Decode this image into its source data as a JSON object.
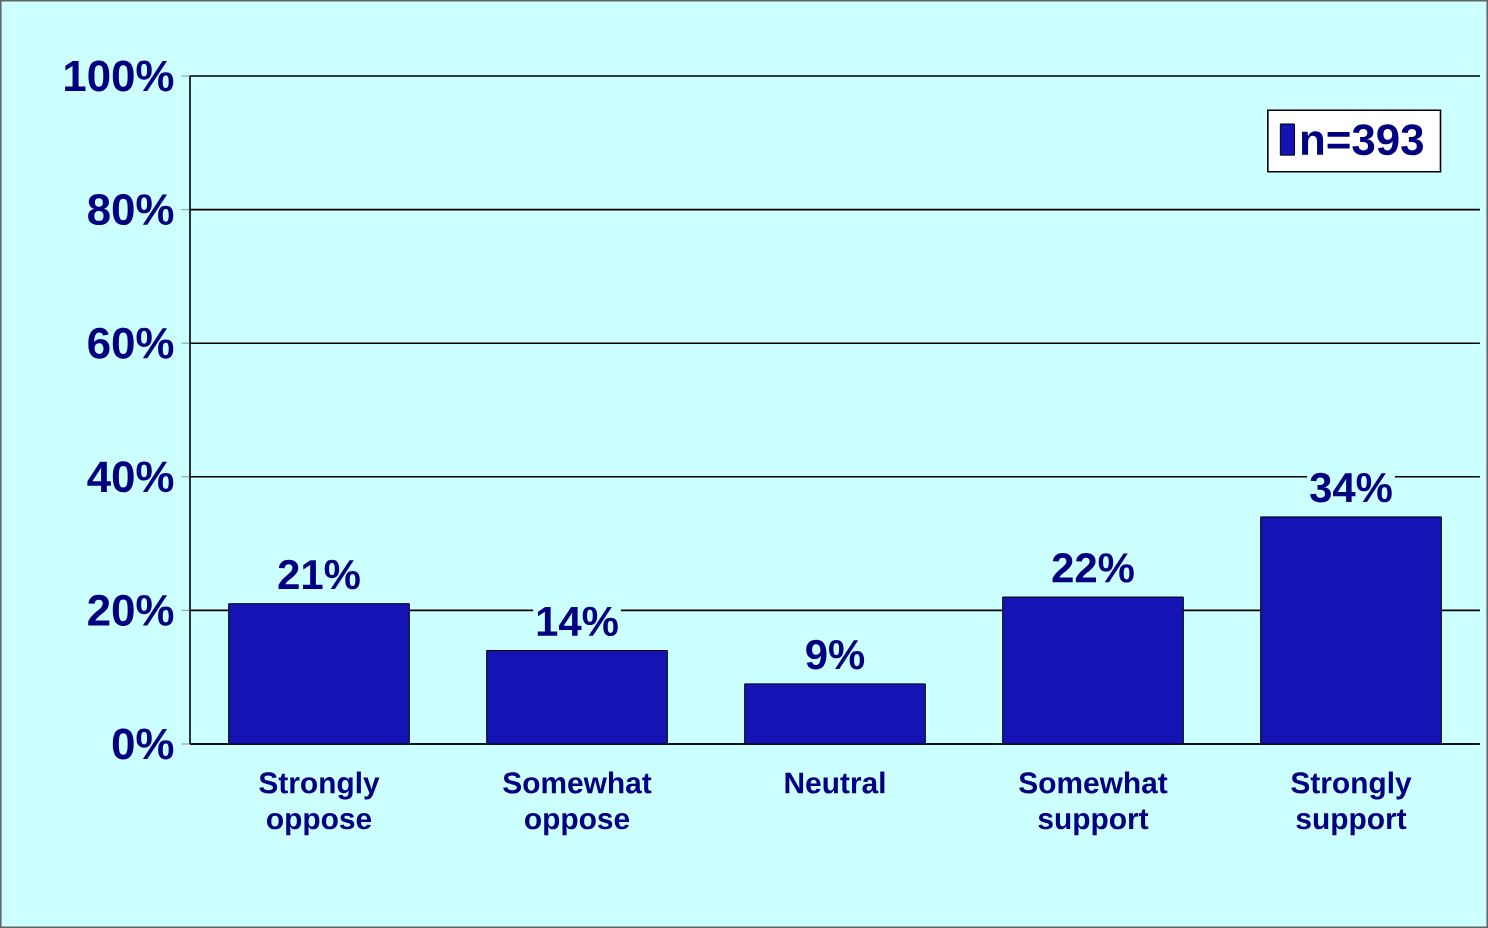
{
  "chart_data": {
    "type": "bar",
    "categories": [
      "Strongly oppose",
      "Somewhat oppose",
      "Neutral",
      "Somewhat support",
      "Strongly support"
    ],
    "series": [
      {
        "name": "n=393",
        "color": "#1414b4",
        "values": [
          21,
          14,
          9,
          22,
          34
        ],
        "value_labels": [
          "21%",
          "14%",
          "9%",
          "22%",
          "34%"
        ]
      }
    ],
    "ylim": [
      0,
      100
    ],
    "yticks": [
      {
        "value": 0,
        "label": "0%"
      },
      {
        "value": 20,
        "label": "20%"
      },
      {
        "value": 40,
        "label": "40%"
      },
      {
        "value": 60,
        "label": "60%"
      },
      {
        "value": 80,
        "label": "80%"
      },
      {
        "value": 100,
        "label": "100%"
      }
    ],
    "grid": "y",
    "legend": "top right"
  }
}
